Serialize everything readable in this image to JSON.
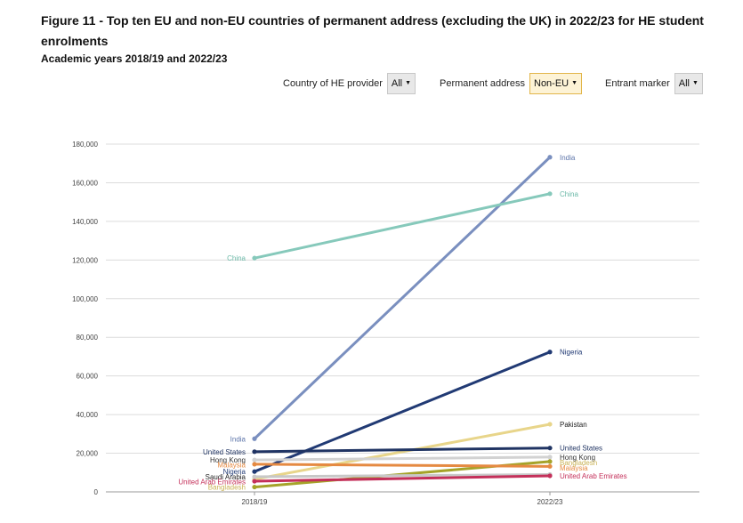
{
  "title": "Figure 11 - Top ten EU and non-EU countries of permanent address (excluding the UK) in 2022/23 for HE student enrolments",
  "subtitle": "Academic years 2018/19 and 2022/23",
  "filters": {
    "provider": {
      "label": "Country of HE provider",
      "value": "All"
    },
    "permanent": {
      "label": "Permanent address",
      "value": "Non-EU"
    },
    "entrant": {
      "label": "Entrant marker",
      "value": "All"
    }
  },
  "chart_data": {
    "type": "line",
    "categories": [
      "2018/19",
      "2022/23"
    ],
    "ylim": [
      0,
      180000
    ],
    "yticks": [
      0,
      20000,
      40000,
      60000,
      80000,
      100000,
      120000,
      140000,
      160000,
      180000
    ],
    "ytick_labels": [
      "0",
      "20,000",
      "40,000",
      "60,000",
      "80,000",
      "100,000",
      "120,000",
      "140,000",
      "160,000",
      "180,000"
    ],
    "grid": true,
    "series": [
      {
        "name": "India",
        "values": [
          27500,
          173200
        ],
        "color": "#7a8fbf",
        "label_color": "#5c74a9"
      },
      {
        "name": "China",
        "values": [
          121000,
          154300
        ],
        "color": "#86c9bb",
        "label_color": "#6cb9a8"
      },
      {
        "name": "Nigeria",
        "values": [
          10500,
          72400
        ],
        "color": "#213a74",
        "label_color": "#213a74"
      },
      {
        "name": "Pakistan",
        "values": [
          6500,
          35000
        ],
        "color": "#e8d58a",
        "label_color": "#222222"
      },
      {
        "name": "United States",
        "values": [
          20800,
          22700
        ],
        "color": "#203463",
        "label_color": "#203463"
      },
      {
        "name": "Hong Kong",
        "values": [
          16500,
          18000
        ],
        "color": "#d2d2d2",
        "label_color": "#333333"
      },
      {
        "name": "Bangladesh",
        "values": [
          2500,
          15700
        ],
        "color": "#a5a329",
        "label_color": "#c9b255"
      },
      {
        "name": "Malaysia",
        "values": [
          14300,
          13200
        ],
        "color": "#e58a42",
        "label_color": "#e58a42"
      },
      {
        "name": "Saudi Arabia",
        "values": [
          7800,
          9000
        ],
        "color": "#c8c8c8",
        "label_color": "#222222"
      },
      {
        "name": "United Arab Emirates",
        "values": [
          5500,
          8300
        ],
        "color": "#c4305a",
        "label_color": "#c4305a"
      }
    ],
    "left_labels": [
      "China",
      "India",
      "United States",
      "Hong Kong",
      "Malaysia",
      "Nigeria",
      "Saudi Arabia",
      "United Arab Emirates",
      "Bangladesh"
    ],
    "right_labels": [
      "India",
      "China",
      "Nigeria",
      "Pakistan",
      "United States",
      "Hong Kong",
      "Bangladesh",
      "Malaysia",
      "United Arab Emirates"
    ]
  }
}
